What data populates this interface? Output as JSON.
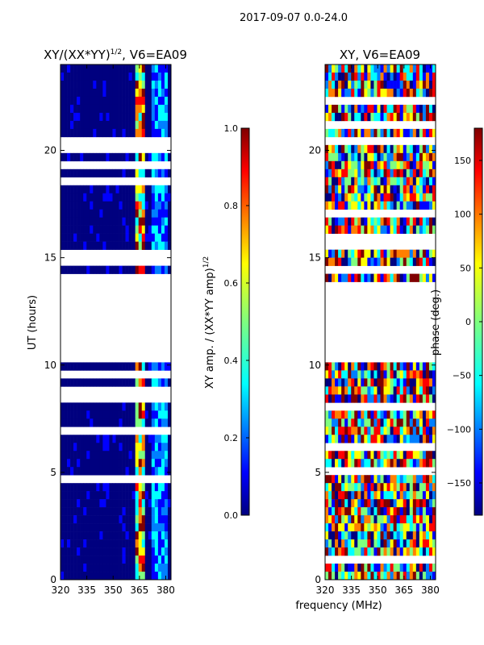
{
  "suptitle": "2017-09-07 0.0-24.0",
  "xlabel_shared": "frequency (MHz)",
  "chart_data": [
    {
      "type": "heatmap",
      "title_main": "XY/(XX*YY)",
      "title_sup": "1/2",
      "title_rest": ", V6=EA09",
      "xlabel": "frequency (MHz)",
      "ylabel": "UT (hours)",
      "xlim": [
        320,
        383
      ],
      "ylim": [
        0,
        24
      ],
      "xticks": [
        320,
        335,
        350,
        365,
        380
      ],
      "yticks": [
        0,
        5,
        10,
        15,
        20
      ],
      "colorbar": {
        "label_main": "XY amp. / (XX*YY amp)",
        "label_sup": "1/2",
        "range": [
          0.0,
          1.0
        ],
        "ticks": [
          "0.0",
          "0.2",
          "0.4",
          "0.6",
          "0.8",
          "1.0"
        ],
        "colormap": "jet"
      }
    },
    {
      "type": "heatmap",
      "title": "XY, V6=EA09",
      "xlabel": "frequency (MHz)",
      "ylabel": "",
      "xlim": [
        320,
        383
      ],
      "ylim": [
        0,
        24
      ],
      "xticks": [
        320,
        335,
        350,
        365,
        380
      ],
      "yticks": [
        0,
        5,
        10,
        15,
        20
      ],
      "colorbar": {
        "label": "phase (deg.)",
        "range": [
          -180,
          180
        ],
        "ticks": [
          "−150",
          "−100",
          "−50",
          "0",
          "50",
          "100",
          "150"
        ],
        "colormap": "jet"
      }
    }
  ],
  "colors": {
    "jet": [
      "#00007f",
      "#0000ff",
      "#007fff",
      "#00ffff",
      "#7fff7f",
      "#ffff00",
      "#ff7f00",
      "#ff0000",
      "#7f0000"
    ]
  }
}
